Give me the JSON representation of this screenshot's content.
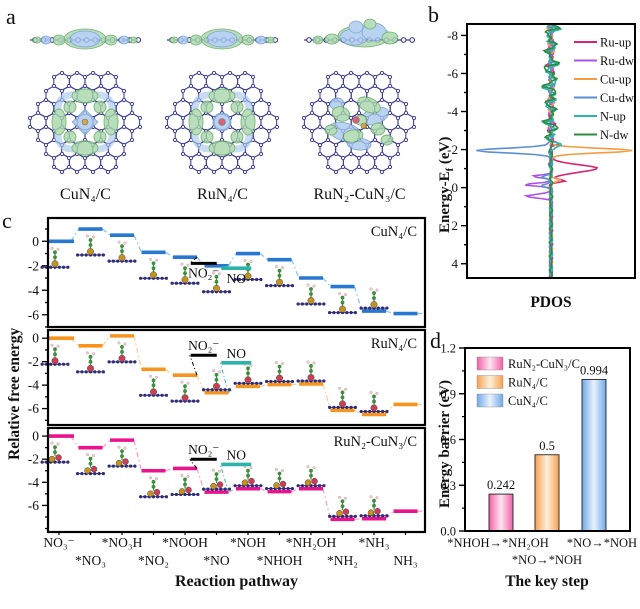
{
  "panel_letters": {
    "a": "a",
    "b": "b",
    "c": "c",
    "d": "d"
  },
  "panel_a": {
    "structures": [
      {
        "label": "CuN₄/C",
        "type": "cu"
      },
      {
        "label": "RuN₄/C",
        "type": "ru"
      },
      {
        "label": "RuN₂-CuN₃/C",
        "type": "mix"
      }
    ],
    "colors": {
      "lattice": "#41419a",
      "green": "#a7d7a9",
      "green_edge": "#5aa05a",
      "blue": "#a9c9ee",
      "blue_edge": "#6a93c8",
      "ru_atom": "#cf3d55",
      "cu_atom": "#c8921a"
    }
  },
  "chart_data": [
    {
      "id": "pdos",
      "type": "line",
      "xlabel": "PDOS",
      "ylabel_html": "Energy-E<sub>f</sub> (eV)",
      "y_axis": {
        "min": -8.6,
        "max": 4.75,
        "ticks": [
          -8,
          -6,
          -4,
          -2,
          0,
          2,
          4
        ],
        "inverted": true
      },
      "legend_position": "top-right",
      "series": [
        {
          "name": "Ru-up",
          "color": "#d6246e",
          "side": 1,
          "peaks": [
            {
              "e": -2.3,
              "a": 0.1,
              "w": 0.1
            },
            {
              "e": -1.0,
              "a": 0.56,
              "w": 0.28
            },
            {
              "e": -0.35,
              "a": 0.16,
              "w": 0.1
            }
          ],
          "wiggle": {
            "a": 0.045,
            "from": -8.4,
            "to": -2.6
          }
        },
        {
          "name": "Ru-dw",
          "color": "#a855e8",
          "side": -1,
          "peaks": [
            {
              "e": -0.6,
              "a": 0.22,
              "w": 0.1
            },
            {
              "e": -0.15,
              "a": 0.33,
              "w": 0.1
            },
            {
              "e": 0.45,
              "a": 0.3,
              "w": 0.13
            }
          ],
          "wiggle": {
            "a": 0.03,
            "from": -8.4,
            "to": -1.0
          }
        },
        {
          "name": "Cu-up",
          "color": "#f59b42",
          "side": 1,
          "peaks": [
            {
              "e": -1.95,
              "a": 0.98,
              "w": 0.17
            },
            {
              "e": -0.4,
              "a": 0.1,
              "w": 0.12
            }
          ],
          "wiggle": {
            "a": 0.035,
            "from": -8.4,
            "to": -2.4
          }
        },
        {
          "name": "Cu-dw",
          "color": "#5b8fd4",
          "side": -1,
          "peaks": [
            {
              "e": -1.95,
              "a": 0.92,
              "w": 0.17
            },
            {
              "e": -0.55,
              "a": 0.13,
              "w": 0.1
            },
            {
              "e": -0.1,
              "a": 0.11,
              "w": 0.1
            }
          ],
          "wiggle": {
            "a": 0.035,
            "from": -8.4,
            "to": -2.4
          }
        },
        {
          "name": "N-up",
          "color": "#27b5ad",
          "side": 1,
          "peaks": [
            {
              "e": -2.35,
              "a": 0.12,
              "w": 0.12
            }
          ],
          "wiggle": {
            "a": 0.1,
            "from": -8.45,
            "to": -2.2
          }
        },
        {
          "name": "N-dw",
          "color": "#2e8b3d",
          "side": -1,
          "peaks": [],
          "wiggle": {
            "a": 0.11,
            "from": -8.45,
            "to": -2.8
          }
        }
      ]
    },
    {
      "id": "free_energy",
      "type": "step-line",
      "ylabel": "Relative free energy",
      "xlabel": "Reaction pathway",
      "categories": [
        "NO₃⁻",
        "*NO₃",
        "*NO₃H",
        "*NO₂",
        "*NOOH",
        "*NO",
        "*NOH",
        "*NHOH",
        "*NH₂OH",
        "*NH₂",
        "*NH₃",
        "NH₃"
      ],
      "no2_label": "NO₂⁻",
      "no_label": "NO",
      "no_color": "#2cb3aa",
      "no2_color": "#000000",
      "panels": [
        {
          "title": "CuN₄/C",
          "color": "#2878cf",
          "dash": "#8ec4ee",
          "metal": "cu",
          "values": [
            0.0,
            1.0,
            0.5,
            -0.9,
            -1.3,
            -2.0,
            -1.0,
            -1.5,
            -3.0,
            -3.7,
            -5.7,
            -5.9
          ],
          "ymax": 1.9,
          "ymin": -7.0,
          "yticks": [
            0,
            -2,
            -4,
            -6
          ],
          "no2_value": -1.8,
          "no_value": -2.2,
          "ref_label_side": "below"
        },
        {
          "title": "RuN₄/C",
          "color": "#f7941d",
          "dash": "#fbcf9a",
          "metal": "ru",
          "values": [
            0.0,
            -0.65,
            0.2,
            -2.65,
            -3.15,
            -4.65,
            -4.1,
            -3.95,
            -3.9,
            -6.15,
            -6.5,
            -5.65
          ],
          "ymax": 0.7,
          "ymin": -7.4,
          "yticks": [
            0,
            -2,
            -4,
            -6
          ],
          "no2_value": -1.45,
          "no_value": -2.1,
          "ref_label_side": "above"
        },
        {
          "title": "RuN₂-CuN₃/C",
          "color": "#e9148c",
          "dash": "#f6a0cd",
          "metal": "mix",
          "values": [
            0.0,
            -1.0,
            -0.35,
            -3.0,
            -2.8,
            -4.85,
            -4.55,
            -4.8,
            -4.55,
            -7.2,
            -7.15,
            -6.5
          ],
          "ymax": 0.7,
          "ymin": -8.3,
          "yticks": [
            0,
            -2,
            -4,
            -6
          ],
          "no2_value": -2.0,
          "no_value": -2.45,
          "ref_label_side": "above"
        }
      ]
    },
    {
      "id": "barrier",
      "type": "bar",
      "ylabel": "Energy barrier (eV)",
      "xlabel": "The key step",
      "ylim": [
        0,
        1.2
      ],
      "yticks": [
        "0.0",
        "0.3",
        "0.6",
        "0.9",
        "1.2"
      ],
      "bars": [
        {
          "label": "RuN₂-CuN₃/C",
          "step": "*NHOH→*NH₂OH",
          "value": 0.242,
          "value_label": "0.242",
          "color_dark": "#f25fa5",
          "color_light": "#fce6f1"
        },
        {
          "label": "RuN₄/C",
          "step": "*NO→*NOH",
          "value": 0.5,
          "value_label": "0.5",
          "color_dark": "#f6a04e",
          "color_light": "#fdf0dd"
        },
        {
          "label": "CuN₄/C",
          "step": "*NO→*NOH",
          "value": 0.994,
          "value_label": "0.994",
          "color_dark": "#70a9e9",
          "color_light": "#eaf2fd"
        }
      ],
      "xlabel_rows": {
        "row1": [
          "*NHOH→*NH₂OH",
          "*NO→*NOH"
        ],
        "row2": [
          "*NO→*NOH"
        ]
      }
    }
  ]
}
